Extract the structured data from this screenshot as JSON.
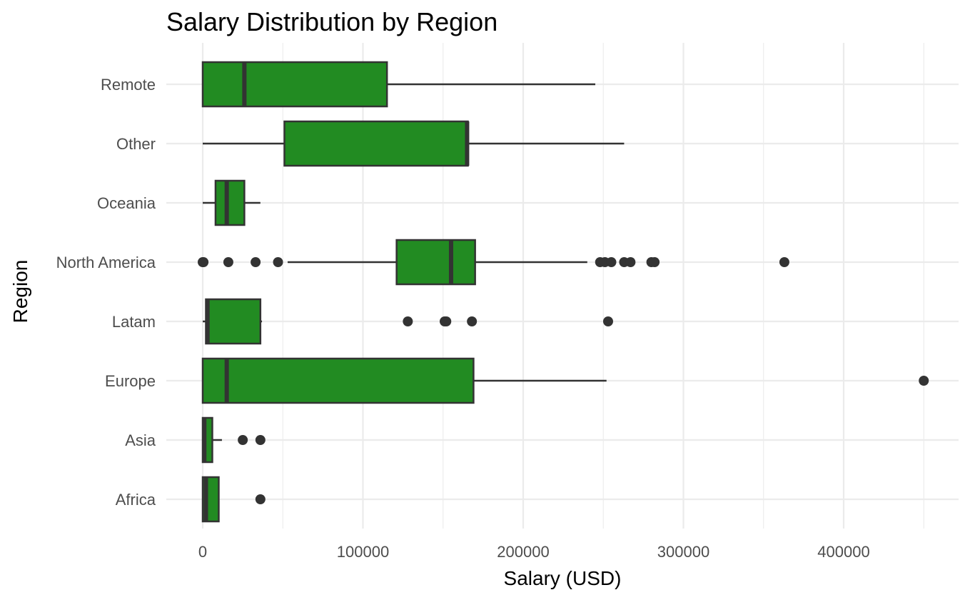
{
  "chart_data": {
    "type": "boxplot",
    "orientation": "horizontal",
    "title": "Salary Distribution by Region",
    "xlabel": "Salary (USD)",
    "ylabel": "Region",
    "xlim": [
      -20000,
      470000
    ],
    "x_ticks": [
      0,
      100000,
      200000,
      300000,
      400000
    ],
    "x_tick_labels": [
      "0",
      "100000",
      "200000",
      "300000",
      "400000"
    ],
    "grid": true,
    "legend": "none",
    "colors": {
      "box_fill": "#228B22",
      "box_line": "#333333",
      "grid": "#ebebeb"
    },
    "categories": [
      "Africa",
      "Asia",
      "Europe",
      "Latam",
      "North America",
      "Oceania",
      "Other",
      "Remote"
    ],
    "boxes": [
      {
        "region": "Africa",
        "whisker_low": 0,
        "q1": 0,
        "median": 2000,
        "q3": 10000,
        "whisker_high": 10000,
        "outliers": [
          36000
        ]
      },
      {
        "region": "Asia",
        "whisker_low": 0,
        "q1": 0,
        "median": 1000,
        "q3": 6000,
        "whisker_high": 12000,
        "outliers": [
          25000,
          36000
        ]
      },
      {
        "region": "Europe",
        "whisker_low": 0,
        "q1": 0,
        "median": 15000,
        "q3": 169000,
        "whisker_high": 252000,
        "outliers": [
          450000
        ]
      },
      {
        "region": "Latam",
        "whisker_low": 0,
        "q1": 2000,
        "median": 3000,
        "q3": 36000,
        "whisker_high": 37000,
        "outliers": [
          128000,
          151000,
          152000,
          168000,
          253000
        ]
      },
      {
        "region": "North America",
        "whisker_low": 53000,
        "q1": 121000,
        "median": 155000,
        "q3": 170000,
        "whisker_high": 240000,
        "outliers": [
          0,
          500,
          16000,
          33000,
          47000,
          248000,
          251000,
          255000,
          263000,
          267000,
          280000,
          282000,
          363000
        ]
      },
      {
        "region": "Oceania",
        "whisker_low": 0,
        "q1": 8000,
        "median": 15000,
        "q3": 26000,
        "whisker_high": 36000,
        "outliers": []
      },
      {
        "region": "Other",
        "whisker_low": 0,
        "q1": 51000,
        "median": 165000,
        "q3": 165500,
        "whisker_high": 263000,
        "outliers": []
      },
      {
        "region": "Remote",
        "whisker_low": 0,
        "q1": 0,
        "median": 26000,
        "q3": 115000,
        "whisker_high": 245000,
        "outliers": []
      }
    ]
  }
}
